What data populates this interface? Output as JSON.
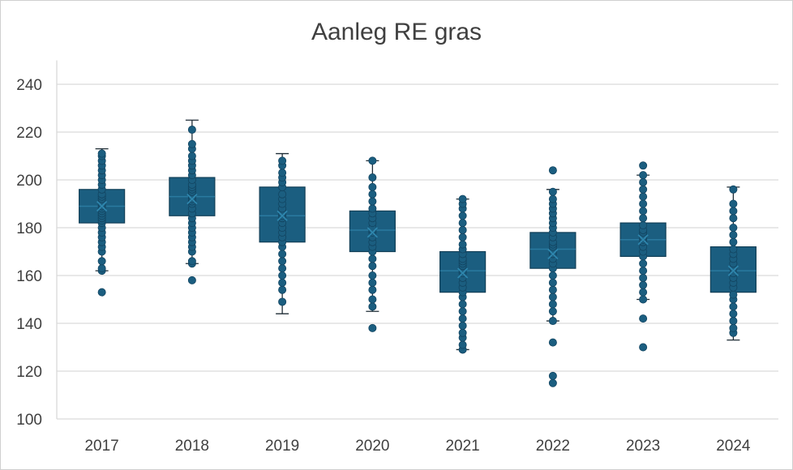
{
  "chart_data": {
    "type": "boxplot",
    "title": "Aanleg RE gras",
    "xlabel": "",
    "ylabel": "",
    "ylim": [
      100,
      250
    ],
    "yticks": [
      100,
      120,
      140,
      160,
      180,
      200,
      220,
      240
    ],
    "grid": true,
    "legend": "none",
    "colors": {
      "box_fill": "#1b5e80",
      "box_edge": "#123f57",
      "point": "#1b5e80",
      "grid": "#d9d9d9",
      "text": "#404040"
    },
    "categories": [
      "2017",
      "2018",
      "2019",
      "2020",
      "2021",
      "2022",
      "2023",
      "2024"
    ],
    "boxes": [
      {
        "year": "2017",
        "whisker_low": 162,
        "q1": 182,
        "median": 189,
        "q3": 196,
        "whisker_high": 213,
        "mean": 189,
        "points": [
          153,
          162,
          163,
          166,
          170,
          172,
          174,
          176,
          178,
          180,
          182,
          183,
          184,
          185,
          186,
          187,
          188,
          189,
          190,
          191,
          192,
          193,
          194,
          196,
          198,
          200,
          202,
          204,
          206,
          208,
          210,
          211
        ]
      },
      {
        "year": "2018",
        "whisker_low": 165,
        "q1": 185,
        "median": 193,
        "q3": 201,
        "whisker_high": 225,
        "mean": 192,
        "points": [
          158,
          165,
          166,
          170,
          172,
          174,
          176,
          178,
          180,
          182,
          184,
          186,
          188,
          190,
          191,
          192,
          193,
          194,
          195,
          196,
          197,
          198,
          200,
          202,
          204,
          206,
          208,
          210,
          213,
          215,
          221
        ]
      },
      {
        "year": "2019",
        "whisker_low": 144,
        "q1": 174,
        "median": 185,
        "q3": 197,
        "whisker_high": 211,
        "mean": 185,
        "points": [
          149,
          154,
          157,
          160,
          163,
          166,
          169,
          172,
          174,
          176,
          178,
          180,
          182,
          184,
          185,
          186,
          187,
          188,
          190,
          192,
          194,
          197,
          199,
          201,
          203,
          206,
          208
        ]
      },
      {
        "year": "2020",
        "whisker_low": 145,
        "q1": 170,
        "median": 179,
        "q3": 187,
        "whisker_high": 208,
        "mean": 178,
        "points": [
          138,
          147,
          150,
          154,
          157,
          160,
          164,
          167,
          170,
          172,
          174,
          176,
          178,
          179,
          180,
          182,
          184,
          186,
          188,
          191,
          194,
          197,
          201,
          208
        ]
      },
      {
        "year": "2021",
        "whisker_low": 129,
        "q1": 153,
        "median": 162,
        "q3": 170,
        "whisker_high": 192,
        "mean": 161,
        "points": [
          129,
          131,
          134,
          136,
          139,
          142,
          145,
          148,
          151,
          153,
          155,
          157,
          159,
          161,
          162,
          163,
          164,
          165,
          166,
          167,
          169,
          171,
          173,
          176,
          179,
          182,
          185,
          188,
          190,
          192
        ]
      },
      {
        "year": "2022",
        "whisker_low": 141,
        "q1": 163,
        "median": 171,
        "q3": 178,
        "whisker_high": 196,
        "mean": 169,
        "points": [
          115,
          118,
          132,
          141,
          145,
          148,
          151,
          154,
          157,
          160,
          163,
          165,
          167,
          169,
          170,
          171,
          172,
          173,
          174,
          176,
          178,
          180,
          182,
          184,
          186,
          188,
          190,
          192,
          195,
          204
        ]
      },
      {
        "year": "2023",
        "whisker_low": 150,
        "q1": 168,
        "median": 175,
        "q3": 182,
        "whisker_high": 202,
        "mean": 175,
        "points": [
          130,
          142,
          150,
          153,
          156,
          159,
          162,
          165,
          168,
          170,
          172,
          174,
          175,
          176,
          177,
          178,
          179,
          181,
          184,
          187,
          190,
          193,
          196,
          199,
          202,
          206
        ]
      },
      {
        "year": "2024",
        "whisker_low": 133,
        "q1": 153,
        "median": 162,
        "q3": 172,
        "whisker_high": 197,
        "mean": 162,
        "points": [
          136,
          138,
          141,
          144,
          147,
          150,
          152,
          155,
          157,
          159,
          161,
          163,
          165,
          167,
          169,
          171,
          174,
          177,
          180,
          184,
          187,
          190,
          196
        ]
      }
    ]
  }
}
